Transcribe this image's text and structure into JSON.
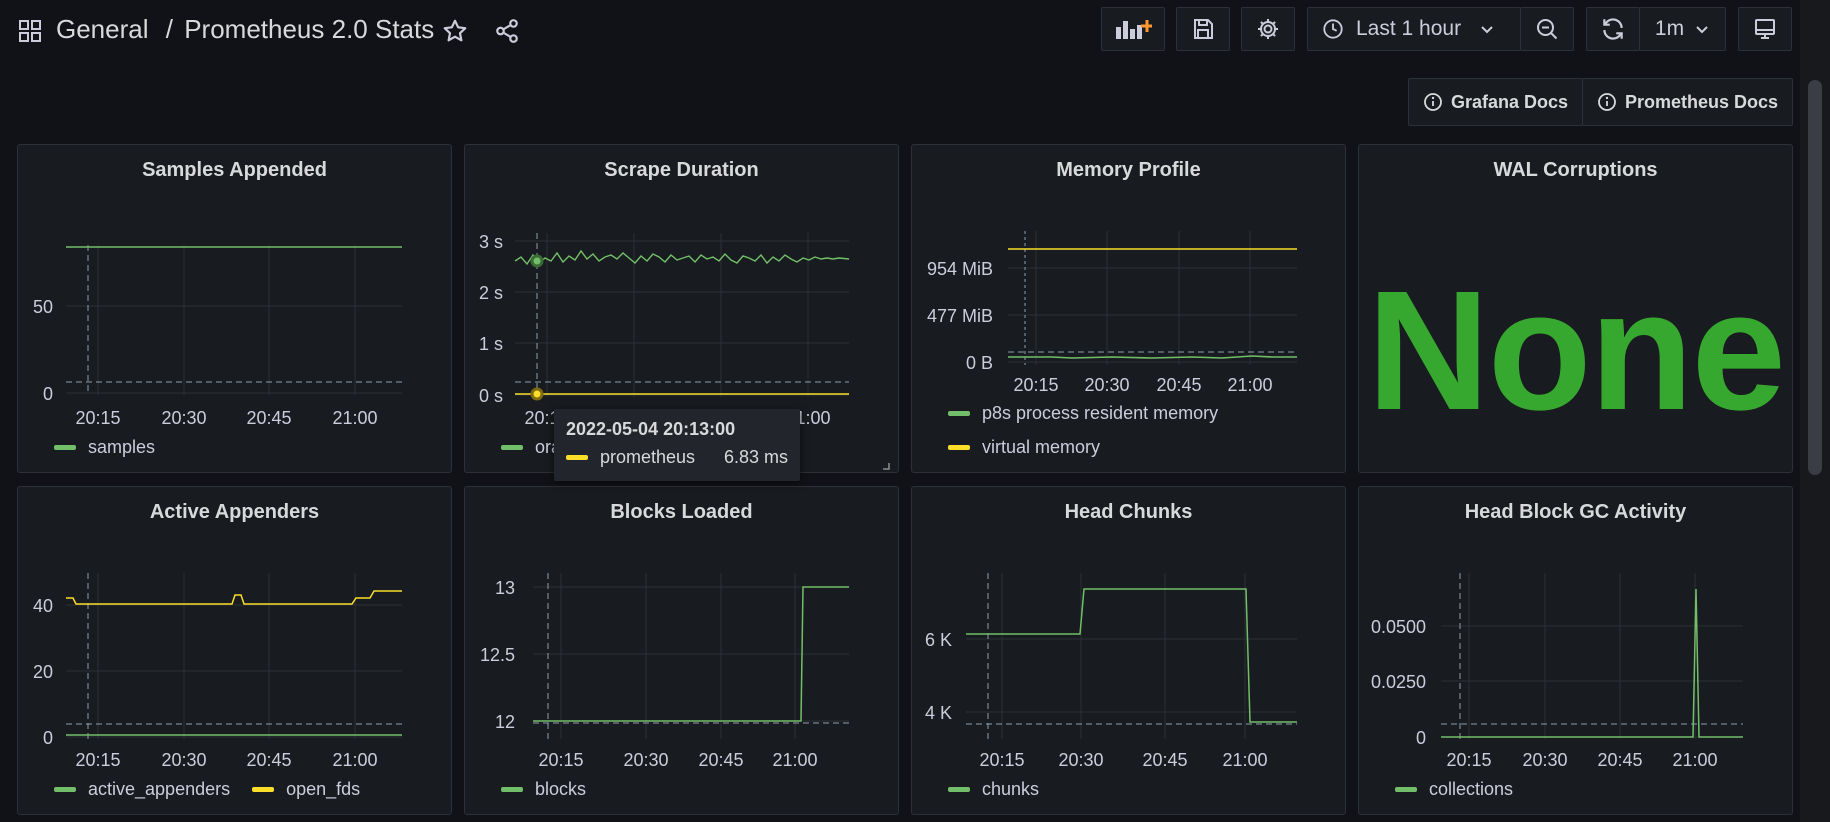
{
  "header": {
    "folder": "General",
    "separator": "/",
    "dashboard": "Prometheus 2.0 Stats",
    "time_range": "Last 1 hour",
    "refresh_interval": "1m",
    "icons": [
      "apps-icon",
      "star-icon",
      "share-icon",
      "add-panel-icon",
      "save-icon",
      "settings-icon",
      "clock-icon",
      "chevron-down-icon",
      "zoom-out-icon",
      "refresh-icon",
      "tv-icon"
    ]
  },
  "links": {
    "grafana_docs": "Grafana Docs",
    "prometheus_docs": "Prometheus Docs"
  },
  "colors": {
    "green": "#73bf69",
    "yellow": "#fade2a",
    "stat_green": "#37a82f",
    "background": "#111217",
    "panel": "#181b1f"
  },
  "panels": {
    "samples_appended": {
      "title": "Samples Appended",
      "chart_data": {
        "type": "line",
        "x": [
          "20:10",
          "21:08"
        ],
        "y_ticks": [
          "0",
          "50"
        ],
        "x_ticks": [
          "20:15",
          "20:30",
          "20:45",
          "21:00"
        ],
        "series": [
          {
            "name": "samples",
            "color": "#73bf69",
            "values": [
              83,
              83
            ]
          }
        ]
      }
    },
    "scrape_duration": {
      "title": "Scrape Duration",
      "chart_data": {
        "type": "line",
        "y_ticks": [
          "0 s",
          "1 s",
          "2 s",
          "3 s"
        ],
        "x_ticks": [
          "20:15",
          "20:30",
          "20:45",
          "21:00"
        ],
        "series": [
          {
            "name": "prometheus",
            "color": "#fade2a",
            "values": [
              0.00683
            ]
          },
          {
            "name": "ora",
            "color": "#73bf69",
            "values": [
              2.7
            ]
          }
        ]
      }
    },
    "memory_profile": {
      "title": "Memory Profile",
      "chart_data": {
        "type": "line",
        "y_ticks": [
          "0 B",
          "477 MiB",
          "954 MiB"
        ],
        "x_ticks": [
          "20:15",
          "20:30",
          "20:45",
          "21:00"
        ],
        "series": [
          {
            "name": "p8s process resident memory",
            "color": "#73bf69",
            "values": [
              40
            ]
          },
          {
            "name": "virtual memory",
            "color": "#fade2a",
            "values": [
              1200
            ]
          }
        ]
      }
    },
    "wal_corruptions": {
      "title": "WAL Corruptions",
      "value": "None"
    },
    "active_appenders": {
      "title": "Active Appenders",
      "chart_data": {
        "type": "line",
        "y_ticks": [
          "0",
          "20",
          "40"
        ],
        "x_ticks": [
          "20:15",
          "20:30",
          "20:45",
          "21:00"
        ],
        "series": [
          {
            "name": "active_appenders",
            "color": "#73bf69",
            "values": [
              0
            ]
          },
          {
            "name": "open_fds",
            "color": "#fade2a",
            "values": [
              41,
              44
            ]
          }
        ]
      }
    },
    "blocks_loaded": {
      "title": "Blocks Loaded",
      "chart_data": {
        "type": "line",
        "y_ticks": [
          "12",
          "12.5",
          "13"
        ],
        "x_ticks": [
          "20:15",
          "20:30",
          "20:45",
          "21:00"
        ],
        "series": [
          {
            "name": "blocks",
            "color": "#73bf69",
            "values": [
              12,
              13
            ]
          }
        ]
      }
    },
    "head_chunks": {
      "title": "Head Chunks",
      "chart_data": {
        "type": "line",
        "y_ticks": [
          "4 K",
          "6 K"
        ],
        "x_ticks": [
          "20:15",
          "20:30",
          "20:45",
          "21:00"
        ],
        "series": [
          {
            "name": "chunks",
            "color": "#73bf69",
            "values": [
              6200,
              7400,
              3700
            ]
          }
        ]
      }
    },
    "head_block_gc": {
      "title": "Head Block GC Activity",
      "chart_data": {
        "type": "line",
        "y_ticks": [
          "0",
          "0.0250",
          "0.0500"
        ],
        "x_ticks": [
          "20:15",
          "20:30",
          "20:45",
          "21:00"
        ],
        "series": [
          {
            "name": "collections",
            "color": "#73bf69",
            "values": [
              0,
              0.067,
              0
            ]
          }
        ]
      }
    }
  },
  "tooltip": {
    "time": "2022-05-04 20:13:00",
    "series": "prometheus",
    "value": "6.83 ms"
  }
}
